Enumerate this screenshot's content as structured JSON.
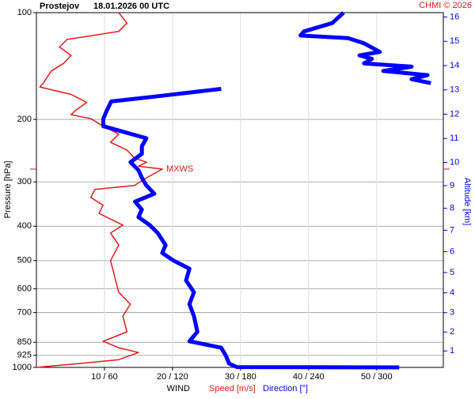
{
  "chart_data": {
    "type": "profile",
    "title": "Prostejov",
    "subtitle": "18.01.2026 00 UTC",
    "credit": "CHMI © 2026",
    "xlabel": "WIND",
    "ylabel": "Pressure [hPa]",
    "y2label": "Altitude [km]",
    "ylim": [
      100,
      1000
    ],
    "ylog": true,
    "yinvert": true,
    "yticks": [
      100,
      200,
      300,
      400,
      500,
      600,
      700,
      850,
      925,
      1000
    ],
    "xlim": [
      0,
      59.8
    ],
    "x2lim": [
      0,
      359
    ],
    "xticks": [
      {
        "value": 10,
        "label": "10 / 60"
      },
      {
        "value": 20,
        "label": "20 / 120"
      },
      {
        "value": 30,
        "label": "30 / 180"
      },
      {
        "value": 40,
        "label": "40 / 240"
      },
      {
        "value": 50,
        "label": "50 / 300"
      }
    ],
    "y2ticks": [
      1,
      2,
      3,
      4,
      5,
      6,
      7,
      8,
      9,
      10,
      11,
      12,
      13,
      14,
      15,
      16
    ],
    "grid": true,
    "series": [
      {
        "name": "Speed [m/s]",
        "color": "#e31a1c",
        "axis": "x",
        "values": [
          12.1,
          13.3,
          12.1,
          4.5,
          3.4,
          5.1,
          4,
          2.2,
          1,
          0.5,
          5.1,
          7.4,
          5.7,
          5.1,
          8,
          9.8,
          12.1,
          10.9,
          13.3,
          14.4,
          16.2,
          15,
          18.5,
          16.2,
          14.4,
          8.6,
          8,
          9.8,
          9.2,
          12.7,
          10.9,
          12.1,
          10.9,
          11.5,
          12.1,
          13.8,
          12.7,
          13.3,
          9.8,
          12.1,
          15,
          12.1,
          6.3,
          0
        ],
        "y": [
          100,
          107,
          113,
          119,
          125,
          132,
          139,
          146,
          158,
          162,
          170,
          179,
          189,
          194,
          199,
          209,
          220,
          232,
          244,
          257,
          264,
          271,
          276,
          292,
          307,
          315,
          332,
          349,
          368,
          397,
          418,
          452,
          500,
          555,
          614,
          663,
          717,
          794,
          844,
          880,
          908,
          951,
          975,
          1000
        ]
      },
      {
        "name": "Direction [°]",
        "color": "#0000ff",
        "axis": "x2",
        "values": [
          320,
          177,
          170,
          167,
          163,
          135,
          142,
          139,
          135,
          139,
          132,
          135,
          121,
          111,
          114,
          107,
          100,
          90,
          93,
          87,
          104,
          97,
          93,
          90,
          83,
          93,
          93,
          97,
          73,
          59,
          59,
          62,
          66,
          107,
          149,
          163,
          null,
          348,
          331,
          345,
          306,
          331,
          289,
          296,
          285,
          303,
          289,
          275,
          233,
          236,
          261,
          268,
          271
        ],
        "y": [
          1000,
          998,
          975,
          925,
          880,
          844,
          794,
          717,
          663,
          614,
          569,
          527,
          500,
          476,
          452,
          418,
          397,
          377,
          359,
          341,
          324,
          307,
          292,
          278,
          264,
          250,
          238,
          226,
          215,
          209,
          199,
          189,
          178,
          172,
          166,
          164,
          null,
          158,
          154,
          150,
          146,
          142,
          139,
          135,
          132,
          129,
          122,
          118,
          116,
          113,
          107,
          102,
          100
        ]
      }
    ],
    "annotations": [
      {
        "text": "MXWS",
        "y": 276,
        "x": 18.5
      }
    ]
  }
}
